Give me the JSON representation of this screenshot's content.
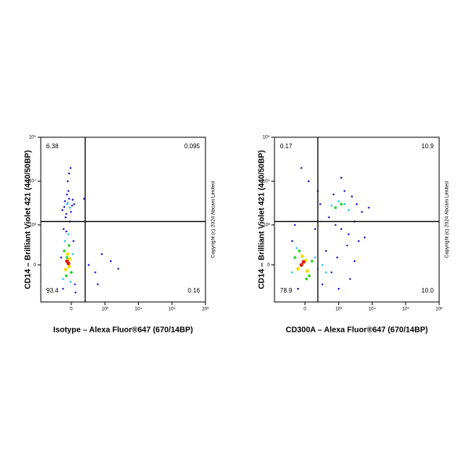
{
  "chart_data": [
    {
      "type": "scatter",
      "xlabel": "Isotype – Alexa Fluor®647 (670/14BP)",
      "ylabel": "CD14 – Brilliant Violet 421 (440/50BP)",
      "copyright": "Copyright (c) 2024 Abcam Limited",
      "xlim": [
        -800,
        1000000
      ],
      "ylim": [
        -850,
        100000
      ],
      "xticks": [
        0,
        {
          "value": 1000,
          "label": "10³"
        },
        {
          "value": 10000,
          "label": "10⁴"
        },
        {
          "value": 100000,
          "label": "10⁵"
        },
        {
          "value": 1000000,
          "label": "10⁶"
        }
      ],
      "yticks": [
        0,
        {
          "value": 1000,
          "label": "10³"
        },
        {
          "value": 10000,
          "label": "10⁴"
        },
        {
          "value": 100000,
          "label": "10⁵"
        }
      ],
      "gate": {
        "x": 220,
        "y": 1200
      },
      "quadrants": {
        "values": [
          6.38,
          0.095,
          93.4,
          0.16
        ]
      },
      "series": [
        {
          "color": "#1010d0",
          "x": [
            -150,
            50,
            -110,
            -20,
            30,
            -70,
            -130,
            10,
            -30,
            -90,
            40,
            -60,
            -5,
            -100,
            20,
            -40,
            -80,
            300,
            500,
            800,
            1500,
            2500,
            600,
            -50,
            -10,
            -70,
            60,
            200,
            -120,
            -30
          ],
          "values": [
            100,
            -300,
            800,
            1200,
            400,
            1800,
            2200,
            2800,
            4000,
            3500,
            3000,
            5000,
            2000,
            2600,
            3800,
            6000,
            1500,
            0,
            -100,
            150,
            50,
            -50,
            -300,
            10000,
            20000,
            700,
            -500,
            4000,
            -400,
            15000
          ]
        },
        {
          "color": "#10b8e8",
          "x": [
            -120,
            20,
            -90,
            -40,
            -10,
            -60,
            -20,
            -50
          ],
          "values": [
            -200,
            150,
            400,
            600,
            -250,
            3000,
            2500,
            3200
          ]
        },
        {
          "color": "#30d030",
          "x": [
            -100,
            0,
            -70,
            -30,
            -60
          ],
          "values": [
            200,
            -100,
            -150,
            300,
            100
          ]
        },
        {
          "color": "#f0e020",
          "x": [
            -80,
            -20,
            -50,
            -30
          ],
          "values": [
            -60,
            80,
            150,
            -20
          ]
        },
        {
          "color": "#e02010",
          "x": [
            -60,
            -40
          ],
          "values": [
            50,
            20
          ]
        }
      ]
    },
    {
      "type": "scatter",
      "xlabel": "CD300A – Alexa Fluor®647 (670/14BP)",
      "ylabel": "CD14 – Brilliant Violet 421 (440/50BP)",
      "copyright": "Copyright (c) 2024 Abcam Limited",
      "xlim": [
        -800,
        1000000
      ],
      "ylim": [
        -850,
        100000
      ],
      "xticks": [
        0,
        {
          "value": 1000,
          "label": "10³"
        },
        {
          "value": 10000,
          "label": "10⁴"
        },
        {
          "value": 100000,
          "label": "10⁵"
        },
        {
          "value": 1000000,
          "label": "10⁶"
        }
      ],
      "yticks": [
        0,
        {
          "value": 1000,
          "label": "10³"
        },
        {
          "value": 10000,
          "label": "10⁴"
        },
        {
          "value": 100000,
          "label": "10⁵"
        }
      ],
      "gate": {
        "x": 200,
        "y": 1200
      },
      "quadrants": {
        "values": [
          0.17,
          10.9,
          78.9,
          10
        ],
        "value_labels": [
          "0.17",
          "10.9",
          "78.9",
          "10.0"
        ]
      },
      "series": [
        {
          "color": "#1010d0",
          "x": [
            500,
            800,
            1200,
            2000,
            3000,
            4000,
            700,
            1500,
            2500,
            3500,
            5000,
            300,
            400,
            600,
            900,
            1800,
            250,
            -200,
            -50,
            150,
            2200,
            6000,
            1000,
            3000,
            200,
            -100,
            50,
            8000,
            1200,
            -150
          ],
          "values": [
            1500,
            1000,
            800,
            600,
            1200,
            400,
            5000,
            6000,
            4500,
            3000,
            2000,
            -300,
            200,
            -100,
            100,
            300,
            3000,
            400,
            20000,
            800,
            -200,
            500,
            -400,
            50,
            6000,
            -400,
            10000,
            2500,
            12000,
            1000
          ]
        },
        {
          "color": "#10b8e8",
          "x": [
            -200,
            150,
            200,
            -120,
            300,
            1000,
            600,
            1500,
            2000,
            400
          ],
          "values": [
            -100,
            100,
            -50,
            250,
            0,
            3500,
            2800,
            3000,
            2200,
            -100
          ]
        },
        {
          "color": "#30d030",
          "x": [
            -150,
            60,
            -80,
            100,
            20,
            800,
            1200
          ],
          "values": [
            100,
            -150,
            200,
            50,
            -200,
            2500,
            3000
          ]
        },
        {
          "color": "#f0e020",
          "x": [
            -100,
            10,
            -40,
            30
          ],
          "values": [
            -50,
            60,
            120,
            -80
          ]
        },
        {
          "color": "#e02010",
          "x": [
            -50,
            -20
          ],
          "values": [
            0,
            40
          ]
        }
      ]
    }
  ]
}
